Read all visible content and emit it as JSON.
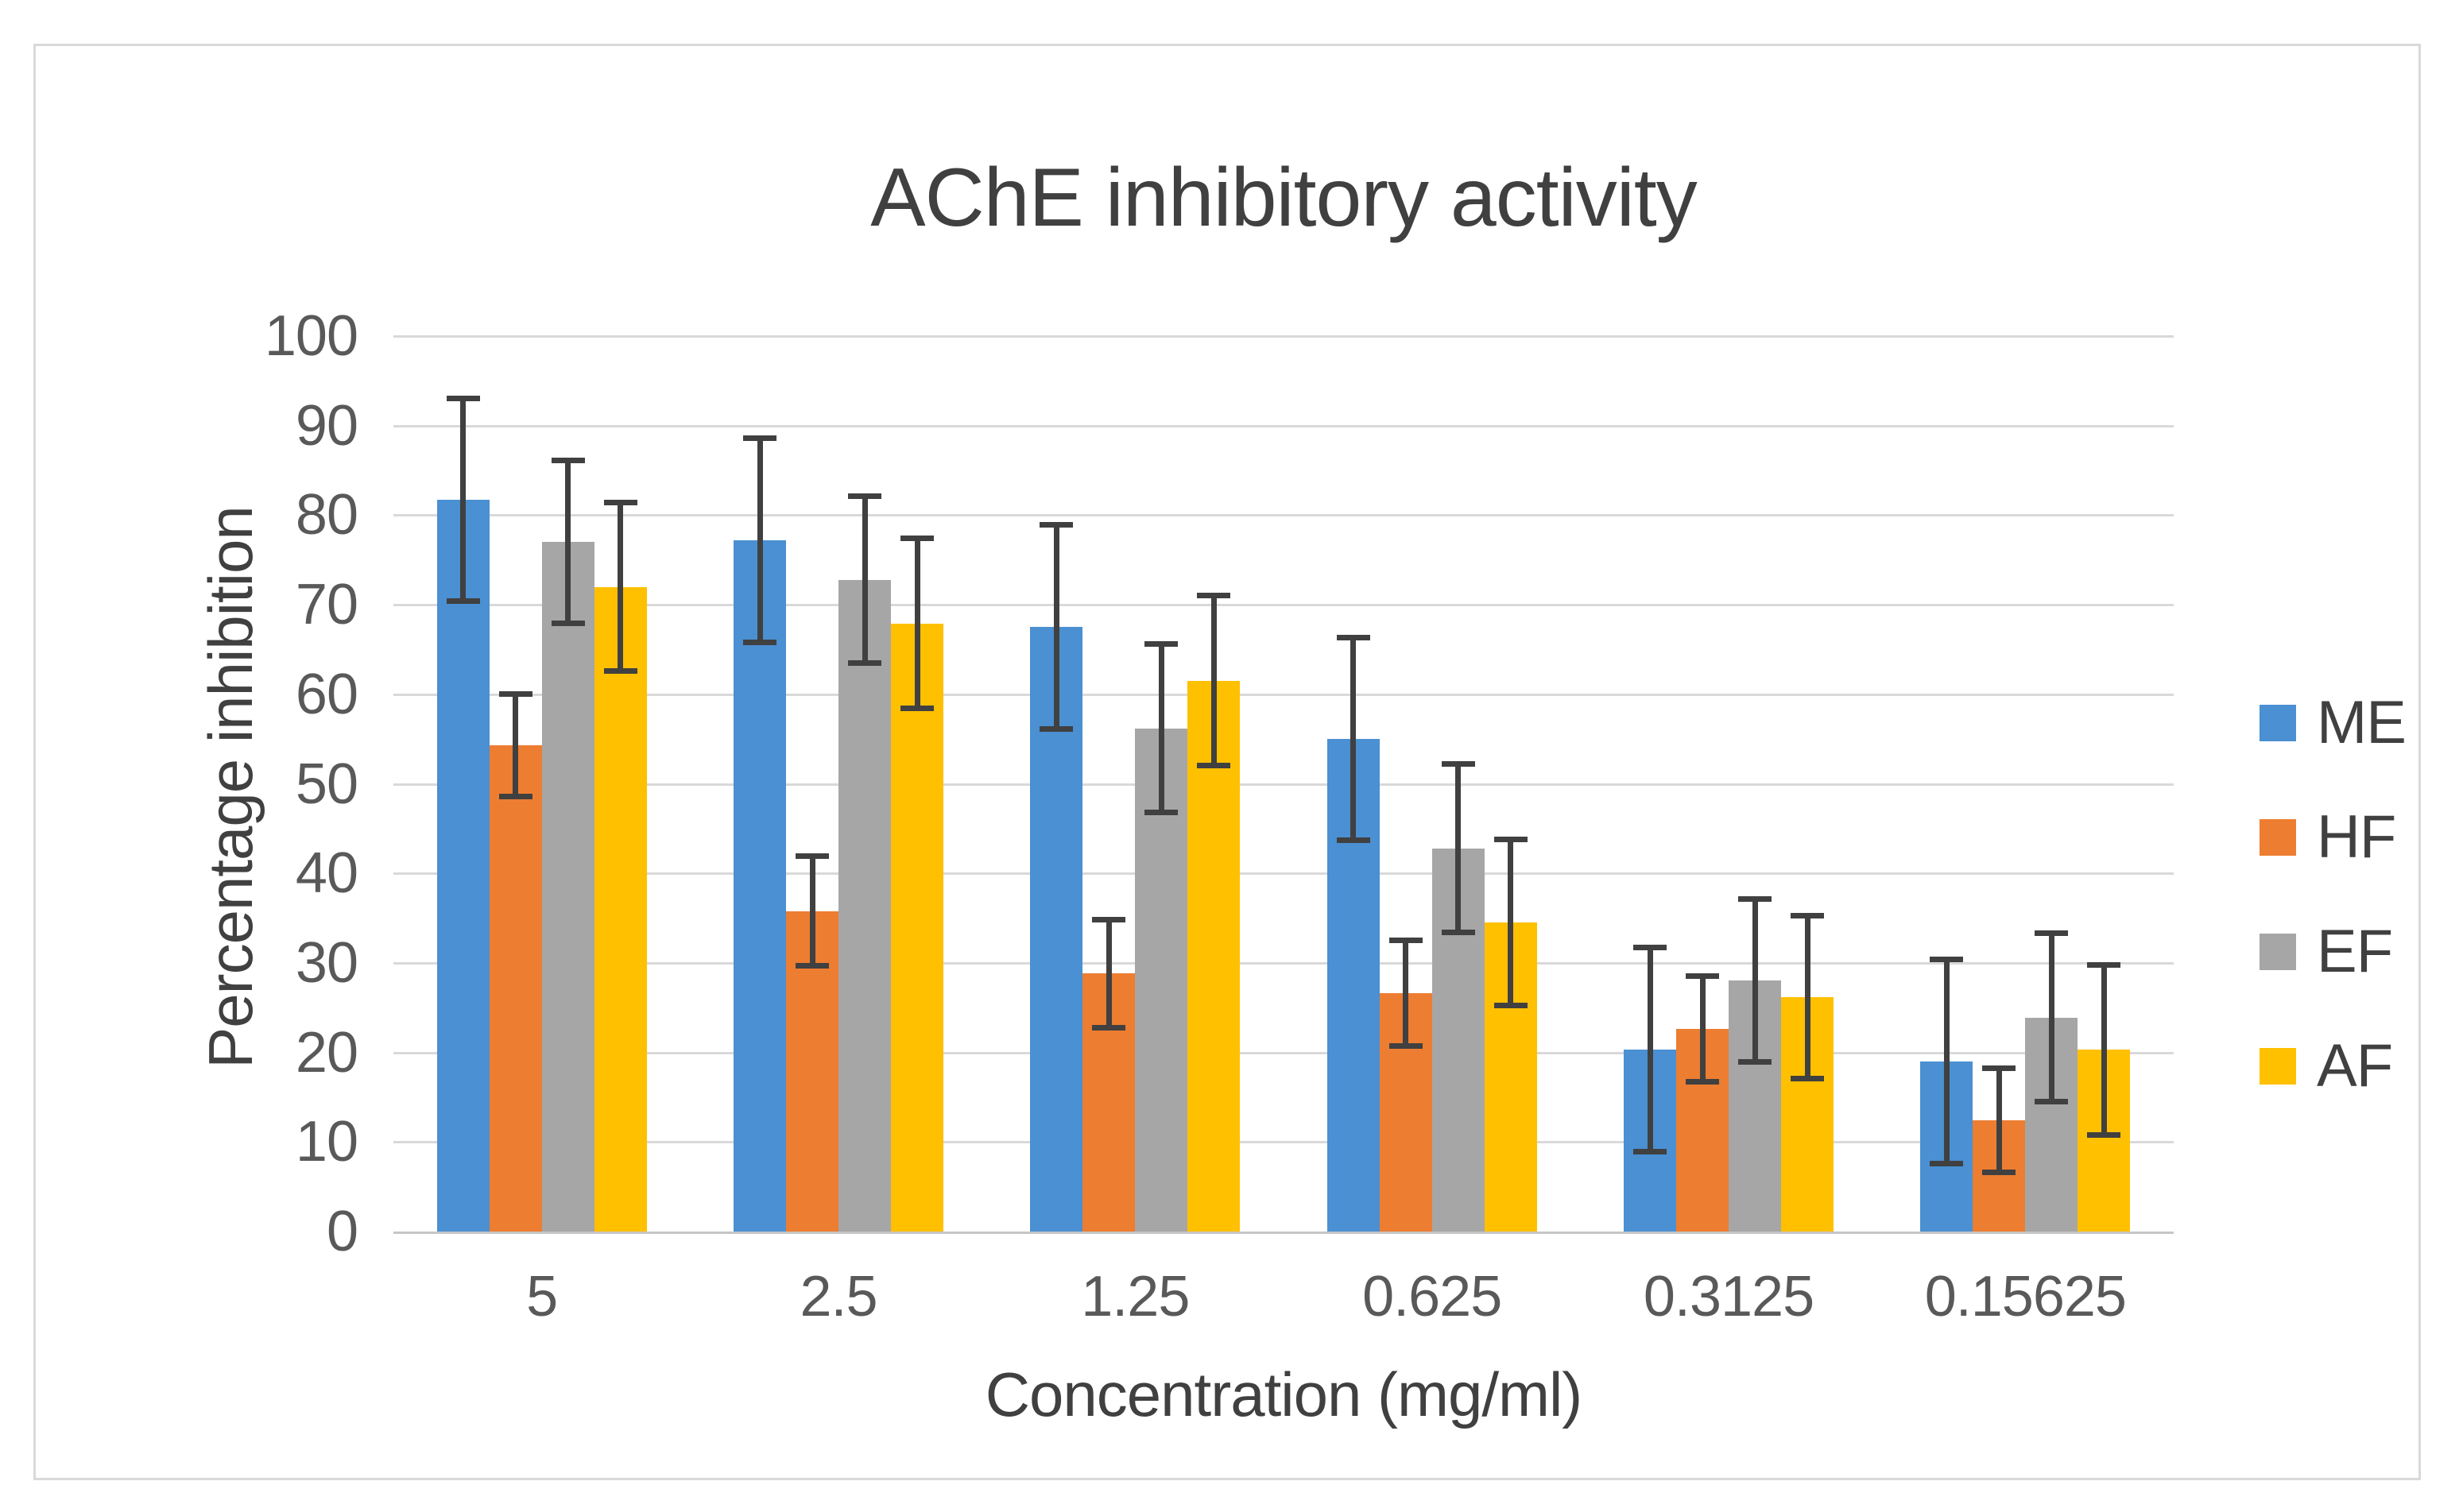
{
  "chart_data": {
    "type": "bar",
    "title": "AChE inhibitory activity",
    "xlabel": "Concentration (mg/ml)",
    "ylabel": "Percentage inhibition",
    "ylim": [
      0,
      100
    ],
    "yticks": [
      0,
      10,
      20,
      30,
      40,
      50,
      60,
      70,
      80,
      90,
      100
    ],
    "grid": true,
    "legend_position": "right",
    "categories": [
      "5",
      "2.5",
      "1.25",
      "0.625",
      "0.3125",
      "0.15625"
    ],
    "series": [
      {
        "name": "ME",
        "color": "#4a90d2",
        "values": [
          81.7,
          77.2,
          67.5,
          55.0,
          20.3,
          19.0
        ],
        "errors": [
          11.3,
          11.4,
          11.4,
          11.3,
          11.4,
          11.4
        ]
      },
      {
        "name": "HF",
        "color": "#ed7d31",
        "values": [
          54.3,
          35.8,
          28.8,
          26.6,
          22.6,
          12.4
        ],
        "errors": [
          5.7,
          6.1,
          6.0,
          5.9,
          5.9,
          5.8
        ]
      },
      {
        "name": "EF",
        "color": "#a6a6a6",
        "values": [
          77.0,
          72.8,
          56.2,
          42.8,
          28.0,
          23.9
        ],
        "errors": [
          9.1,
          9.3,
          9.4,
          9.4,
          9.1,
          9.4
        ]
      },
      {
        "name": "AF",
        "color": "#ffc000",
        "values": [
          72.0,
          67.9,
          61.5,
          34.5,
          26.2,
          20.3
        ],
        "errors": [
          9.4,
          9.5,
          9.5,
          9.3,
          9.1,
          9.5
        ]
      }
    ],
    "error_bar_color": "#404040",
    "gridline_color": "#d9d9d9"
  }
}
